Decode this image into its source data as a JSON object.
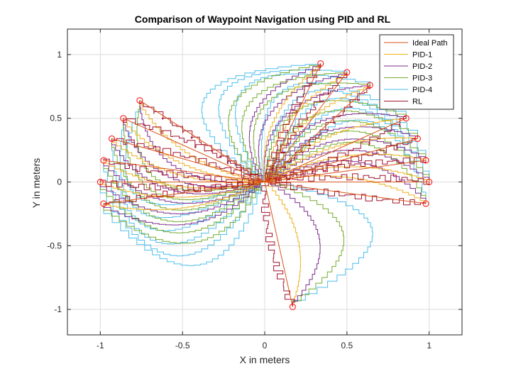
{
  "chart_data": {
    "type": "line",
    "title": "Comparison of Waypoint Navigation using PID and RL",
    "xlabel": "X in meters",
    "ylabel": "Y in meters",
    "xlim": [
      -1.2,
      1.2
    ],
    "ylim": [
      -1.2,
      1.2
    ],
    "xticks": [
      -1,
      -0.5,
      0,
      0.5,
      1
    ],
    "xtick_labels": [
      "-1",
      "-0.5",
      "0",
      "0.5",
      "1"
    ],
    "yticks": [
      -1,
      -0.5,
      0,
      0.5,
      1
    ],
    "ytick_labels": [
      "-1",
      "-0.5",
      "0",
      "0.5",
      "1"
    ],
    "grid": true,
    "legend_position": "top-right",
    "waypoints": [
      [
        0.34,
        0.93
      ],
      [
        0.5,
        0.86
      ],
      [
        0.64,
        0.76
      ],
      [
        0.86,
        0.5
      ],
      [
        0.93,
        0.34
      ],
      [
        0.98,
        0.17
      ],
      [
        1.0,
        0.0
      ],
      [
        0.98,
        -0.17
      ],
      [
        0.17,
        -0.98
      ],
      [
        -0.98,
        -0.17
      ],
      [
        -1.0,
        0.0
      ],
      [
        -0.98,
        0.17
      ],
      [
        -0.93,
        0.34
      ],
      [
        -0.86,
        0.5
      ],
      [
        -0.76,
        0.64
      ]
    ],
    "series": [
      {
        "name": "Ideal Path",
        "color": "#D95319",
        "style": "straight"
      },
      {
        "name": "PID-1",
        "color": "#EDB120",
        "style": "arc",
        "bulge": 0.12
      },
      {
        "name": "PID-2",
        "color": "#7E2F8E",
        "style": "arc",
        "bulge": 0.25
      },
      {
        "name": "PID-3",
        "color": "#77AC30",
        "style": "arc",
        "bulge": 0.4
      },
      {
        "name": "PID-4",
        "color": "#4DBEEE",
        "style": "arc",
        "bulge": 0.58
      },
      {
        "name": "RL",
        "color": "#A2142F",
        "style": "jagged"
      }
    ],
    "marker_color": "#ff0000"
  }
}
